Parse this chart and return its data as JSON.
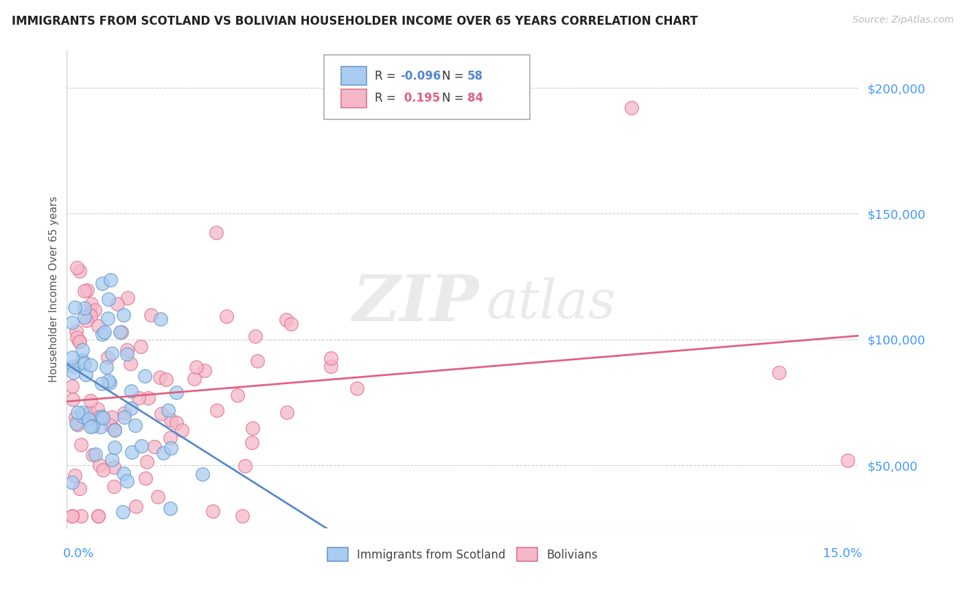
{
  "title": "IMMIGRANTS FROM SCOTLAND VS BOLIVIAN HOUSEHOLDER INCOME OVER 65 YEARS CORRELATION CHART",
  "source": "Source: ZipAtlas.com",
  "ylabel": "Householder Income Over 65 years",
  "watermark_zip": "ZIP",
  "watermark_atlas": "atlas",
  "scotland_color": "#aaccf0",
  "bolivia_color": "#f5b8c8",
  "scotland_edge_color": "#6699cc",
  "bolivia_edge_color": "#e07090",
  "scotland_line_color": "#5588cc",
  "bolivia_line_color": "#e06080",
  "background_color": "#ffffff",
  "grid_color": "#cccccc",
  "ytick_color": "#4499ff",
  "xtick_color": "#4499ff",
  "xlim": [
    0.0,
    0.15
  ],
  "ylim": [
    25000,
    215000
  ],
  "yticks": [
    50000,
    100000,
    150000,
    200000
  ],
  "ytick_labels": [
    "$50,000",
    "$100,000",
    "$150,000",
    "$200,000"
  ],
  "R_scot": -0.096,
  "N_scot": 58,
  "R_boliv": 0.195,
  "N_boliv": 84,
  "scot_seed": 17,
  "boliv_seed": 99
}
